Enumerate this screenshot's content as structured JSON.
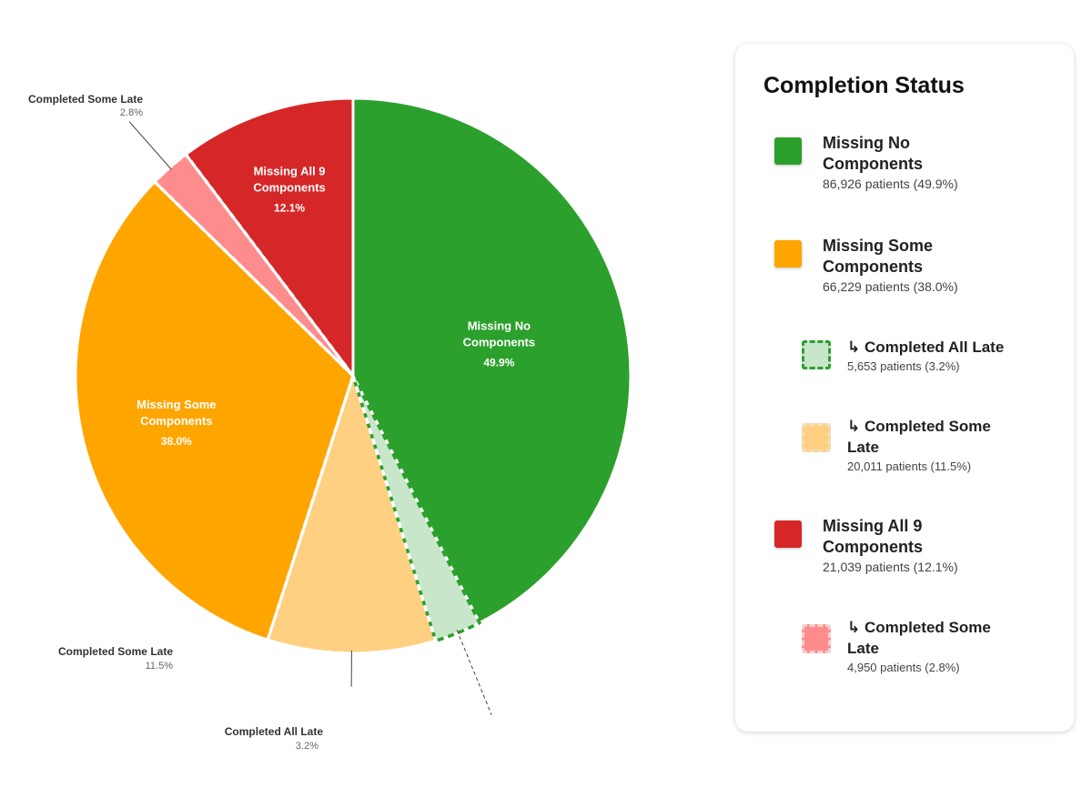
{
  "chart_data": {
    "type": "pie",
    "slices": [
      {
        "key": "missing_no",
        "label": "Missing No Components",
        "label_lines": [
          "Missing No",
          "Components"
        ],
        "value": 49.9,
        "pct_text": "49.9%",
        "color": "#2ca02c",
        "group": "missing_no",
        "sub": false
      },
      {
        "key": "completed_all_late",
        "label": "Completed All Late",
        "value": 3.2,
        "pct_text": "3.2%",
        "color": "#c8e6c9",
        "stroke": "#2ca02c",
        "group": "missing_no",
        "sub": true
      },
      {
        "key": "completed_some_late_orange",
        "label": "Completed Some Late",
        "value": 11.5,
        "pct_text": "11.5%",
        "color": "#ffd082",
        "stroke": "#ffffff",
        "group": "missing_some",
        "sub": true
      },
      {
        "key": "missing_some",
        "label": "Missing Some Components",
        "label_lines": [
          "Missing Some",
          "Components"
        ],
        "value": 38.0,
        "pct_text": "38.0%",
        "color": "#ffa500",
        "group": "missing_some",
        "sub": false
      },
      {
        "key": "completed_some_late_red",
        "label": "Completed Some Late",
        "value": 2.8,
        "pct_text": "2.8%",
        "color": "#ff8c8c",
        "stroke": "#ffffff",
        "group": "missing_all",
        "sub": true
      },
      {
        "key": "missing_all",
        "label": "Missing All 9 Components",
        "label_lines": [
          "Missing All 9",
          "Components"
        ],
        "value": 12.1,
        "pct_text": "12.1%",
        "color": "#d62728",
        "group": "missing_all",
        "sub": false
      }
    ]
  },
  "legend": {
    "title": "Completion Status",
    "items": [
      {
        "label": "Missing No Components",
        "detail": "86,926 patients (49.9%)",
        "color": "#2ca02c",
        "sub": false
      },
      {
        "label": "Missing Some Components",
        "detail": "66,229 patients (38.0%)",
        "color": "#ffa500",
        "sub": false
      },
      {
        "label": "↳ Completed All Late",
        "detail": "5,653 patients (3.2%)",
        "color": "#c8e6c9",
        "border": "#2ca02c",
        "sub": true
      },
      {
        "label": "↳ Completed Some Late",
        "detail": "20,011 patients (11.5%)",
        "color": "#ffd082",
        "border": "#f0e0c0",
        "sub": true
      },
      {
        "label": "Missing All 9 Components",
        "detail": "21,039 patients (12.1%)",
        "color": "#d62728",
        "sub": false
      },
      {
        "label": "↳ Completed Some Late",
        "detail": "4,950 patients (2.8%)",
        "color": "#ff8c8c",
        "border": "#f5d0d0",
        "sub": true
      }
    ]
  }
}
